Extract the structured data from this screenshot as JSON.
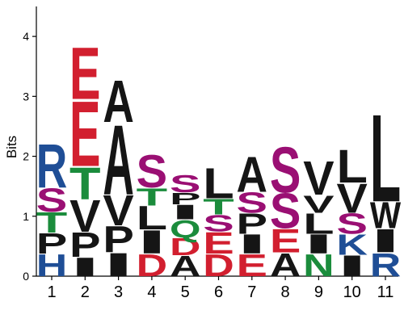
{
  "colors": {
    "R": "#1f4e96",
    "K": "#1f4e96",
    "H": "#1f4e96",
    "S": "#9a0f73",
    "T": "#1b8c3c",
    "Q": "#1b8c3c",
    "N": "#1b8c3c",
    "E": "#d21f2f",
    "D": "#d21f2f",
    "A": "#151515",
    "V": "#151515",
    "P": "#151515",
    "L": "#151515",
    "I": "#151515",
    "W": "#151515",
    "axis": "#000000"
  },
  "chart_data": {
    "type": "sequence_logo",
    "ylabel": "Bits",
    "ylim": [
      0,
      4.5
    ],
    "yticks": [
      0,
      1,
      2,
      3,
      4
    ],
    "positions": [
      "1",
      "2",
      "3",
      "4",
      "5",
      "6",
      "7",
      "8",
      "9",
      "10",
      "11"
    ],
    "stacks": [
      [
        {
          "letter": "H",
          "bits": 0.38
        },
        {
          "letter": "P",
          "bits": 0.35
        },
        {
          "letter": "T",
          "bits": 0.35
        },
        {
          "letter": "S",
          "bits": 0.4
        },
        {
          "letter": "R",
          "bits": 0.75
        }
      ],
      [
        {
          "letter": "I",
          "bits": 0.32
        },
        {
          "letter": "P",
          "bits": 0.42
        },
        {
          "letter": "V",
          "bits": 0.55
        },
        {
          "letter": "T",
          "bits": 0.55
        },
        {
          "letter": "E",
          "bits": 1.12
        },
        {
          "letter": "E",
          "bits": 0.89
        }
      ],
      [
        {
          "letter": "I",
          "bits": 0.4
        },
        {
          "letter": "P",
          "bits": 0.45
        },
        {
          "letter": "V",
          "bits": 0.52
        },
        {
          "letter": "A",
          "bits": 1.2
        },
        {
          "letter": "A",
          "bits": 0.72
        }
      ],
      [
        {
          "letter": "D",
          "bits": 0.38
        },
        {
          "letter": "I",
          "bits": 0.4
        },
        {
          "letter": "L",
          "bits": 0.4
        },
        {
          "letter": "T",
          "bits": 0.3
        },
        {
          "letter": "S",
          "bits": 0.56
        }
      ],
      [
        {
          "letter": "A",
          "bits": 0.35
        },
        {
          "letter": "D",
          "bits": 0.3
        },
        {
          "letter": "Q",
          "bits": 0.3
        },
        {
          "letter": "I",
          "bits": 0.25
        },
        {
          "letter": "P",
          "bits": 0.2
        },
        {
          "letter": "S",
          "bits": 0.3
        }
      ],
      [
        {
          "letter": "D",
          "bits": 0.38
        },
        {
          "letter": "E",
          "bits": 0.37
        },
        {
          "letter": "S",
          "bits": 0.28
        },
        {
          "letter": "T",
          "bits": 0.27
        },
        {
          "letter": "L",
          "bits": 0.52
        }
      ],
      [
        {
          "letter": "E",
          "bits": 0.38
        },
        {
          "letter": "I",
          "bits": 0.33
        },
        {
          "letter": "P",
          "bits": 0.35
        },
        {
          "letter": "S",
          "bits": 0.35
        },
        {
          "letter": "A",
          "bits": 0.6
        }
      ],
      [
        {
          "letter": "A",
          "bits": 0.4
        },
        {
          "letter": "E",
          "bits": 0.4
        },
        {
          "letter": "S",
          "bits": 0.6
        },
        {
          "letter": "S",
          "bits": 0.78
        }
      ],
      [
        {
          "letter": "N",
          "bits": 0.38
        },
        {
          "letter": "I",
          "bits": 0.33
        },
        {
          "letter": "L",
          "bits": 0.35
        },
        {
          "letter": "V",
          "bits": 0.3
        },
        {
          "letter": "V",
          "bits": 0.58
        }
      ],
      [
        {
          "letter": "I",
          "bits": 0.36
        },
        {
          "letter": "K",
          "bits": 0.35
        },
        {
          "letter": "S",
          "bits": 0.35
        },
        {
          "letter": "V",
          "bits": 0.5
        },
        {
          "letter": "L",
          "bits": 0.57
        }
      ],
      [
        {
          "letter": "R",
          "bits": 0.4
        },
        {
          "letter": "I",
          "bits": 0.4
        },
        {
          "letter": "W",
          "bits": 0.45
        },
        {
          "letter": "L",
          "bits": 1.5
        }
      ]
    ]
  }
}
